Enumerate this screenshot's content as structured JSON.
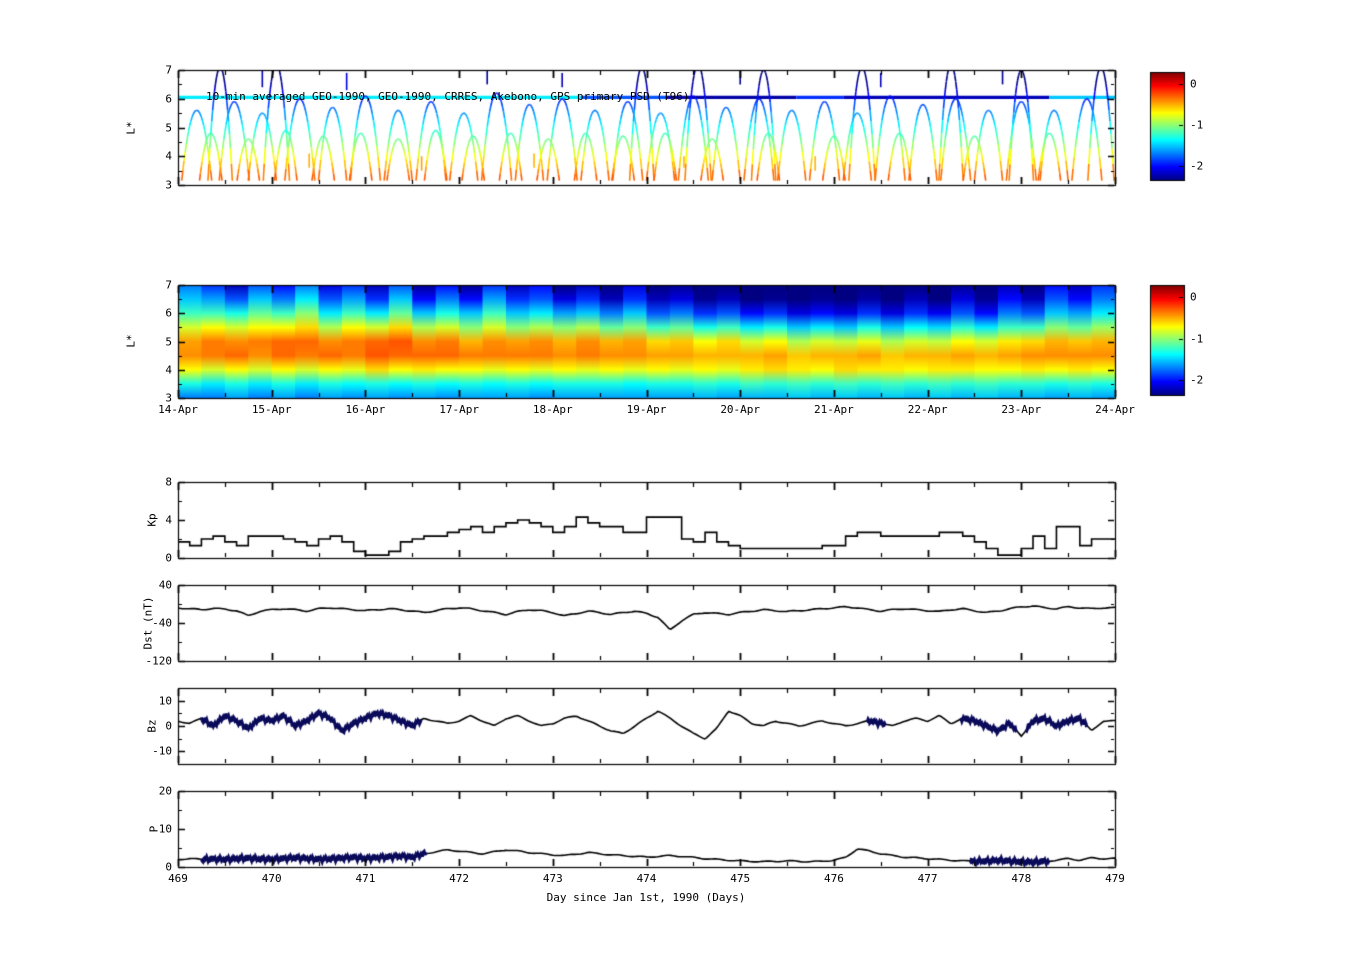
{
  "figure": {
    "background": "#ffffff"
  },
  "x_axis_bottom": {
    "label": "Day since Jan 1st, 1990 (Days)",
    "tick_values": [
      469,
      470,
      471,
      472,
      473,
      474,
      475,
      476,
      477,
      478,
      479
    ]
  },
  "colorbar": {
    "tick_labels": [
      "0",
      "-1",
      "-2"
    ],
    "tick_values": [
      0,
      -1,
      -2
    ],
    "range": {
      "min": -2.35,
      "max": 0.3
    }
  },
  "chart_data": [
    {
      "id": "psd_scatter",
      "type": "scatter",
      "title": "10-min averaged GEO-1990, GEO-1990, CRRES, Akebono, GPS primary PSD (T96)",
      "ylabel": "L*",
      "ylim": [
        3,
        7
      ],
      "yticks": [
        7,
        6,
        5,
        4,
        3
      ],
      "yminors": [
        6.5,
        5.5,
        4.5,
        3.5
      ],
      "xlim": [
        469,
        479
      ],
      "colormap": "jet",
      "value_model": {
        "base": -2.45,
        "slope": 0.62,
        "refL": 6.8
      },
      "geo_track": {
        "L": 6.05,
        "segments": [
          [
            469.0,
            473.3,
            -1.4
          ],
          [
            473.3,
            474.2,
            -1.8
          ],
          [
            474.2,
            475.6,
            -2.25
          ],
          [
            475.6,
            476.1,
            -1.9
          ],
          [
            476.1,
            478.3,
            -2.2
          ],
          [
            478.3,
            479.0,
            -1.5
          ]
        ]
      },
      "arcs": [
        [
          469.45,
          7.1,
          0.13
        ],
        [
          470.05,
          7.2,
          0.14
        ],
        [
          473.95,
          7.1,
          0.13
        ],
        [
          474.55,
          7.2,
          0.14
        ],
        [
          475.25,
          7.0,
          0.13
        ],
        [
          476.3,
          7.1,
          0.14
        ],
        [
          477.25,
          7.2,
          0.13
        ],
        [
          478.0,
          7.0,
          0.13
        ],
        [
          478.85,
          7.1,
          0.14
        ],
        [
          469.2,
          5.6,
          0.16
        ],
        [
          469.6,
          5.9,
          0.16
        ],
        [
          469.9,
          5.5,
          0.15
        ],
        [
          470.3,
          6.0,
          0.16
        ],
        [
          470.65,
          5.7,
          0.15
        ],
        [
          471.0,
          6.1,
          0.16
        ],
        [
          471.35,
          5.6,
          0.15
        ],
        [
          471.7,
          5.9,
          0.16
        ],
        [
          472.05,
          5.5,
          0.15
        ],
        [
          472.4,
          6.2,
          0.16
        ],
        [
          472.75,
          5.8,
          0.15
        ],
        [
          473.1,
          6.0,
          0.16
        ],
        [
          473.45,
          5.6,
          0.15
        ],
        [
          473.8,
          5.9,
          0.16
        ],
        [
          474.15,
          5.5,
          0.15
        ],
        [
          474.5,
          6.1,
          0.16
        ],
        [
          474.85,
          5.7,
          0.15
        ],
        [
          475.2,
          6.0,
          0.16
        ],
        [
          475.55,
          5.6,
          0.15
        ],
        [
          475.9,
          5.9,
          0.16
        ],
        [
          476.25,
          5.5,
          0.15
        ],
        [
          476.6,
          6.1,
          0.16
        ],
        [
          476.95,
          5.8,
          0.15
        ],
        [
          477.3,
          6.0,
          0.16
        ],
        [
          477.65,
          5.6,
          0.15
        ],
        [
          478.0,
          5.9,
          0.16
        ],
        [
          478.35,
          5.6,
          0.15
        ],
        [
          478.7,
          6.0,
          0.16
        ],
        [
          469.35,
          4.8,
          0.12
        ],
        [
          469.75,
          4.6,
          0.12
        ],
        [
          470.15,
          4.9,
          0.12
        ],
        [
          470.55,
          4.7,
          0.12
        ],
        [
          470.95,
          4.8,
          0.12
        ],
        [
          471.35,
          4.6,
          0.12
        ],
        [
          471.75,
          4.9,
          0.12
        ],
        [
          472.15,
          4.7,
          0.12
        ],
        [
          472.55,
          4.8,
          0.12
        ],
        [
          472.95,
          4.6,
          0.12
        ],
        [
          473.35,
          4.8,
          0.12
        ],
        [
          473.75,
          4.7,
          0.12
        ],
        [
          474.2,
          4.8,
          0.12
        ],
        [
          474.7,
          4.6,
          0.12
        ],
        [
          475.3,
          4.8,
          0.12
        ],
        [
          476.0,
          4.7,
          0.12
        ],
        [
          476.7,
          4.8,
          0.12
        ],
        [
          477.5,
          4.7,
          0.12
        ],
        [
          478.3,
          4.8,
          0.12
        ]
      ],
      "vticks": [
        [
          469.9,
          6.4,
          7.0,
          -2.2
        ],
        [
          470.8,
          6.3,
          6.9,
          -2.1
        ],
        [
          472.3,
          6.5,
          7.0,
          -2.3
        ],
        [
          473.1,
          6.4,
          6.9,
          -2.2
        ],
        [
          475.0,
          6.5,
          7.0,
          -2.3
        ],
        [
          476.5,
          6.4,
          6.9,
          -2.2
        ],
        [
          477.8,
          6.5,
          7.0,
          -2.3
        ],
        [
          470.4,
          3.6,
          4.1,
          -0.5
        ],
        [
          471.6,
          3.5,
          4.0,
          -0.45
        ],
        [
          472.8,
          3.6,
          4.1,
          -0.5
        ],
        [
          474.4,
          3.6,
          4.0,
          -0.5
        ],
        [
          475.8,
          3.5,
          4.0,
          -0.5
        ]
      ]
    },
    {
      "id": "psd_spectrogram",
      "type": "heatmap",
      "ylabel": "L*",
      "ylim": [
        3,
        7
      ],
      "yticks": [
        7,
        6,
        5,
        4,
        3
      ],
      "yminors": [
        6.5,
        5.5,
        4.5,
        3.5
      ],
      "xlim": [
        469,
        479
      ],
      "xticklabels": [
        "14-Apr",
        "15-Apr",
        "16-Apr",
        "17-Apr",
        "18-Apr",
        "19-Apr",
        "20-Apr",
        "21-Apr",
        "22-Apr",
        "23-Apr",
        "24-Apr"
      ],
      "L_rows": [
        7,
        6.5,
        6,
        5.5,
        5,
        4.5,
        4,
        3.5,
        3
      ],
      "columns": [
        [
          -1.7,
          -1.5,
          -1.2,
          -0.8,
          -0.45,
          -0.4,
          -0.7,
          -1.3,
          -1.7
        ],
        [
          -1.9,
          -1.6,
          -1.2,
          -0.7,
          -0.35,
          -0.35,
          -0.8,
          -1.4,
          -1.7
        ],
        [
          -2.2,
          -1.8,
          -1.3,
          -0.8,
          -0.4,
          -0.3,
          -0.7,
          -1.3,
          -1.6
        ],
        [
          -1.8,
          -1.5,
          -1.1,
          -0.7,
          -0.35,
          -0.4,
          -0.8,
          -1.4,
          -1.7
        ],
        [
          -2.0,
          -1.7,
          -1.2,
          -0.7,
          -0.3,
          -0.3,
          -0.7,
          -1.3,
          -1.6
        ],
        [
          -1.7,
          -1.4,
          -1.0,
          -0.6,
          -0.3,
          -0.35,
          -0.8,
          -1.4,
          -1.7
        ],
        [
          -2.1,
          -1.8,
          -1.4,
          -0.9,
          -0.4,
          -0.3,
          -0.7,
          -1.3,
          -1.6
        ],
        [
          -1.9,
          -1.6,
          -1.2,
          -0.7,
          -0.35,
          -0.35,
          -0.75,
          -1.35,
          -1.65
        ],
        [
          -2.2,
          -1.9,
          -1.4,
          -0.8,
          -0.3,
          -0.25,
          -0.6,
          -1.3,
          -1.6
        ],
        [
          -1.8,
          -1.5,
          -1.1,
          -0.6,
          -0.25,
          -0.3,
          -0.7,
          -1.35,
          -1.65
        ],
        [
          -2.3,
          -2.0,
          -1.5,
          -0.9,
          -0.4,
          -0.3,
          -0.65,
          -1.3,
          -1.6
        ],
        [
          -2.0,
          -1.7,
          -1.3,
          -0.8,
          -0.35,
          -0.3,
          -0.7,
          -1.35,
          -1.65
        ],
        [
          -2.3,
          -2.0,
          -1.5,
          -1.0,
          -0.5,
          -0.35,
          -0.7,
          -1.3,
          -1.6
        ],
        [
          -1.9,
          -1.6,
          -1.2,
          -0.8,
          -0.4,
          -0.35,
          -0.75,
          -1.35,
          -1.6
        ],
        [
          -2.2,
          -1.9,
          -1.5,
          -1.0,
          -0.45,
          -0.35,
          -0.7,
          -1.3,
          -1.6
        ],
        [
          -2.0,
          -1.8,
          -1.4,
          -0.9,
          -0.4,
          -0.35,
          -0.75,
          -1.35,
          -1.65
        ],
        [
          -2.4,
          -2.1,
          -1.6,
          -1.0,
          -0.5,
          -0.4,
          -0.7,
          -1.3,
          -1.6
        ],
        [
          -2.2,
          -1.9,
          -1.5,
          -0.9,
          -0.4,
          -0.35,
          -0.75,
          -1.3,
          -1.6
        ],
        [
          -2.4,
          -2.2,
          -1.7,
          -1.1,
          -0.5,
          -0.4,
          -0.7,
          -1.3,
          -1.6
        ],
        [
          -2.1,
          -1.9,
          -1.5,
          -1.0,
          -0.45,
          -0.4,
          -0.75,
          -1.35,
          -1.6
        ],
        [
          -2.4,
          -2.2,
          -1.8,
          -1.2,
          -0.6,
          -0.45,
          -0.7,
          -1.3,
          -1.6
        ],
        [
          -2.3,
          -2.1,
          -1.7,
          -1.1,
          -0.55,
          -0.45,
          -0.75,
          -1.3,
          -1.6
        ],
        [
          -2.45,
          -2.3,
          -1.9,
          -1.3,
          -0.7,
          -0.5,
          -0.7,
          -1.25,
          -1.55
        ],
        [
          -2.4,
          -2.2,
          -1.8,
          -1.2,
          -0.6,
          -0.5,
          -0.75,
          -1.3,
          -1.6
        ],
        [
          -2.45,
          -2.35,
          -2.0,
          -1.4,
          -0.8,
          -0.5,
          -0.65,
          -1.2,
          -1.55
        ],
        [
          -2.4,
          -2.3,
          -1.9,
          -1.3,
          -0.7,
          -0.45,
          -0.6,
          -1.25,
          -1.55
        ],
        [
          -2.45,
          -2.35,
          -2.1,
          -1.5,
          -0.9,
          -0.55,
          -0.65,
          -1.2,
          -1.5
        ],
        [
          -2.4,
          -2.3,
          -2.0,
          -1.4,
          -0.8,
          -0.5,
          -0.7,
          -1.25,
          -1.55
        ],
        [
          -2.45,
          -2.35,
          -2.1,
          -1.5,
          -0.85,
          -0.5,
          -0.6,
          -1.2,
          -1.5
        ],
        [
          -2.4,
          -2.25,
          -1.9,
          -1.3,
          -0.75,
          -0.45,
          -0.65,
          -1.25,
          -1.55
        ],
        [
          -2.45,
          -2.35,
          -2.1,
          -1.5,
          -0.9,
          -0.55,
          -0.65,
          -1.2,
          -1.5
        ],
        [
          -2.35,
          -2.2,
          -1.9,
          -1.35,
          -0.8,
          -0.5,
          -0.7,
          -1.25,
          -1.55
        ],
        [
          -2.45,
          -2.35,
          -2.05,
          -1.45,
          -0.85,
          -0.5,
          -0.65,
          -1.2,
          -1.5
        ],
        [
          -2.3,
          -2.1,
          -1.8,
          -1.25,
          -0.7,
          -0.45,
          -0.65,
          -1.25,
          -1.55
        ],
        [
          -2.45,
          -2.3,
          -2.0,
          -1.4,
          -0.8,
          -0.5,
          -0.7,
          -1.2,
          -1.5
        ],
        [
          -2.2,
          -2.0,
          -1.7,
          -1.2,
          -0.65,
          -0.45,
          -0.7,
          -1.25,
          -1.55
        ],
        [
          -2.4,
          -2.2,
          -1.8,
          -1.2,
          -0.6,
          -0.4,
          -0.65,
          -1.25,
          -1.55
        ],
        [
          -2.0,
          -1.8,
          -1.5,
          -1.0,
          -0.5,
          -0.4,
          -0.7,
          -1.3,
          -1.6
        ],
        [
          -2.2,
          -2.0,
          -1.6,
          -1.1,
          -0.55,
          -0.4,
          -0.65,
          -1.25,
          -1.55
        ],
        [
          -1.9,
          -1.7,
          -1.4,
          -0.95,
          -0.5,
          -0.4,
          -0.7,
          -1.3,
          -1.6
        ]
      ]
    },
    {
      "id": "kp",
      "type": "line",
      "mode": "steps",
      "ylabel": "Kp",
      "ylim": [
        0,
        8
      ],
      "yticks": [
        8,
        4,
        0
      ],
      "yminors": [
        6,
        2
      ],
      "x_start": 469,
      "x_step": 0.125,
      "values": [
        1.7,
        1.3,
        2.0,
        2.3,
        1.7,
        1.3,
        2.3,
        2.3,
        2.3,
        2.0,
        1.7,
        1.3,
        2.0,
        2.3,
        1.7,
        0.7,
        0.3,
        0.3,
        0.7,
        1.7,
        2.0,
        2.3,
        2.3,
        2.7,
        3.0,
        3.3,
        2.7,
        3.3,
        3.7,
        4.0,
        3.7,
        3.3,
        2.7,
        3.3,
        4.3,
        3.7,
        3.3,
        3.3,
        2.7,
        2.7,
        4.3,
        4.3,
        4.3,
        2.0,
        1.7,
        2.7,
        1.7,
        1.3,
        1.0,
        1.0,
        1.0,
        1.0,
        1.0,
        1.0,
        1.0,
        1.3,
        1.3,
        2.3,
        2.7,
        2.7,
        2.3,
        2.3,
        2.3,
        2.3,
        2.3,
        2.7,
        2.7,
        2.3,
        1.7,
        1.0,
        0.3,
        0.3,
        1.0,
        2.3,
        1.0,
        3.3,
        3.3,
        1.3,
        2.0,
        2.0
      ]
    },
    {
      "id": "dst",
      "type": "line",
      "ylabel": "Dst (nT)",
      "ylim": [
        -120,
        40
      ],
      "yticks": [
        40,
        -40,
        -120
      ],
      "yminors": [
        0,
        -80
      ],
      "x_start": 469,
      "x_step": 0.125,
      "values": [
        -8,
        -10,
        -12,
        -9,
        -11,
        -14,
        -25,
        -15,
        -12,
        -10,
        -12,
        -15,
        -10,
        -8,
        -10,
        -12,
        -14,
        -12,
        -10,
        -12,
        -15,
        -18,
        -14,
        -10,
        -8,
        -10,
        -14,
        -18,
        -22,
        -16,
        -12,
        -14,
        -18,
        -25,
        -20,
        -15,
        -18,
        -22,
        -18,
        -15,
        -20,
        -28,
        -55,
        -35,
        -22,
        -18,
        -20,
        -22,
        -18,
        -15,
        -12,
        -14,
        -16,
        -14,
        -12,
        -10,
        -8,
        -6,
        -8,
        -12,
        -15,
        -12,
        -10,
        -12,
        -14,
        -16,
        -12,
        -10,
        -14,
        -18,
        -15,
        -10,
        -6,
        -4,
        -8,
        -10,
        -6,
        -8,
        -10,
        -8
      ]
    },
    {
      "id": "bz",
      "type": "line",
      "ylabel": "Bz",
      "ylim": [
        -15,
        15
      ],
      "yticks": [
        10,
        0,
        -10
      ],
      "yminors": [
        5,
        -5
      ],
      "x_start": 469,
      "x_step": 0.125,
      "thick_color": "#0a0a5a",
      "thick_ranges": [
        [
          469.25,
          471.6
        ],
        [
          476.35,
          476.55
        ],
        [
          477.35,
          477.95
        ],
        [
          478.05,
          478.7
        ]
      ],
      "values": [
        2,
        1,
        3,
        0,
        4,
        2,
        -1,
        3,
        2,
        4,
        0,
        2,
        5,
        3,
        -2,
        1,
        3,
        5,
        4,
        2,
        0,
        3,
        2,
        1,
        2,
        4,
        2,
        0,
        3,
        4,
        2,
        0,
        1,
        3,
        4,
        2,
        0,
        -2,
        -3,
        0,
        3,
        6,
        3,
        0,
        -3,
        -5,
        -1,
        6,
        4,
        1,
        0,
        2,
        1,
        0,
        1,
        2,
        1,
        0,
        1,
        2,
        1,
        0,
        2,
        3,
        2,
        4,
        1,
        3,
        2,
        0,
        -2,
        1,
        -4,
        2,
        3,
        0,
        2,
        3,
        -2,
        2
      ]
    },
    {
      "id": "p",
      "type": "line",
      "ylabel": "P",
      "ylim": [
        0,
        20
      ],
      "yticks": [
        20,
        10,
        0
      ],
      "yminors": [
        15,
        5
      ],
      "x_start": 469,
      "x_step": 0.125,
      "thick_color": "#0a0a5a",
      "thick_ranges": [
        [
          469.25,
          471.65
        ],
        [
          477.45,
          478.3
        ]
      ],
      "values": [
        2,
        2.2,
        2,
        2.1,
        2,
        2.2,
        2.3,
        2.1,
        2,
        2.2,
        2.4,
        2.2,
        2,
        2.1,
        2.3,
        2.5,
        2.2,
        2.4,
        2.6,
        2.8,
        2.5,
        3.5,
        4,
        4.5,
        4.2,
        3.8,
        3.5,
        4,
        4.5,
        4.2,
        3.8,
        3.5,
        3.2,
        3,
        3.4,
        3.8,
        3.5,
        3.2,
        3,
        2.8,
        2.6,
        2.8,
        3,
        2.8,
        2.5,
        2.2,
        2,
        1.8,
        1.6,
        1.5,
        1.4,
        1.5,
        1.6,
        1.5,
        1.4,
        1.5,
        1.8,
        2.5,
        4.8,
        4.2,
        3.5,
        3,
        2.6,
        2.4,
        2.2,
        2,
        1.8,
        1.6,
        1.5,
        1.6,
        1.8,
        1.6,
        1.4,
        1.3,
        1.5,
        1.8,
        2.2,
        1.8,
        2.4,
        2.2
      ]
    }
  ]
}
